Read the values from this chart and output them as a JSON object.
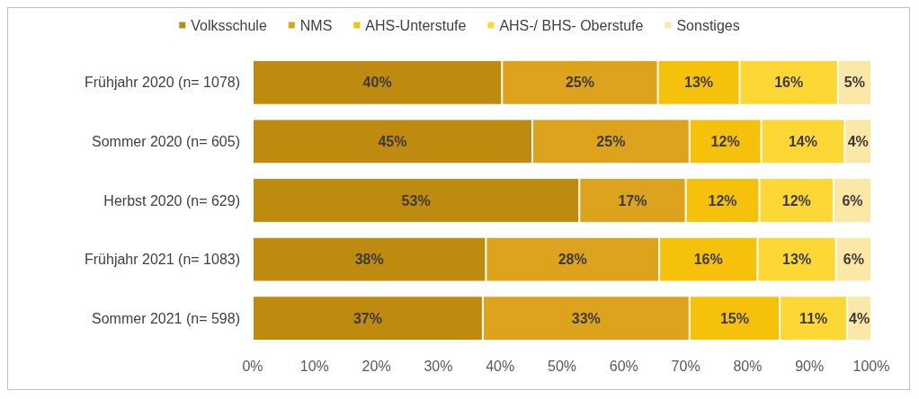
{
  "chart_data": {
    "type": "bar",
    "orientation": "horizontal",
    "stacked": true,
    "categories": [
      "Frühjahr 2020 (n= 1078)",
      "Sommer 2020 (n= 605)",
      "Herbst 2020 (n= 629)",
      "Frühjahr 2021 (n= 1083)",
      "Sommer 2021 (n= 598)"
    ],
    "series": [
      {
        "name": "Volksschule",
        "color": "#bf8b0f",
        "values": [
          40.3,
          45.2,
          52.8,
          37.7,
          37.2
        ],
        "value_labels": [
          "40%",
          "45%",
          "53%",
          "38%",
          "37%"
        ]
      },
      {
        "name": "NMS",
        "color": "#dea31c",
        "values": [
          25.2,
          25.4,
          17.2,
          28.0,
          33.4
        ],
        "value_labels": [
          "25%",
          "25%",
          "17%",
          "28%",
          "33%"
        ]
      },
      {
        "name": "AHS-Unterstufe",
        "color": "#f6c10a",
        "values": [
          13.2,
          11.6,
          11.9,
          15.9,
          14.6
        ],
        "value_labels": [
          "13%",
          "12%",
          "12%",
          "16%",
          "15%"
        ]
      },
      {
        "name": "AHS-/ BHS- Oberstufe",
        "color": "#fdd835",
        "values": [
          15.9,
          13.5,
          12.0,
          12.7,
          10.9
        ],
        "value_labels": [
          "16%",
          "14%",
          "12%",
          "13%",
          "11%"
        ]
      },
      {
        "name": "Sonstiges",
        "color": "#fbe7a6",
        "values": [
          5.4,
          4.3,
          6.1,
          5.7,
          3.9
        ],
        "value_labels": [
          "5%",
          "4%",
          "6%",
          "6%",
          "4%"
        ]
      }
    ],
    "xlim": [
      0,
      100
    ],
    "xticks": [
      {
        "value": 0,
        "label": "0%"
      },
      {
        "value": 10,
        "label": "10%"
      },
      {
        "value": 20,
        "label": "20%"
      },
      {
        "value": 30,
        "label": "30%"
      },
      {
        "value": 40,
        "label": "40%"
      },
      {
        "value": 50,
        "label": "50%"
      },
      {
        "value": 60,
        "label": "60%"
      },
      {
        "value": 70,
        "label": "70%"
      },
      {
        "value": 80,
        "label": "80%"
      },
      {
        "value": 90,
        "label": "90%"
      },
      {
        "value": 100,
        "label": "100%"
      }
    ],
    "legend": "top",
    "grid": false
  }
}
